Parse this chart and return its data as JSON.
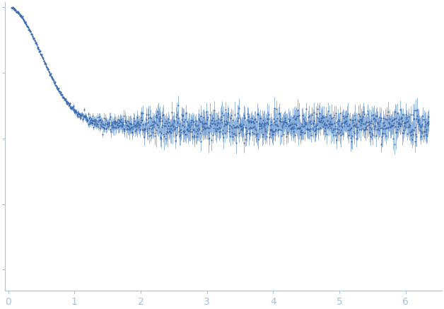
{
  "title": "",
  "xlabel": "",
  "ylabel": "",
  "xlim": [
    -0.05,
    6.55
  ],
  "x_ticks": [
    0,
    1,
    2,
    3,
    4,
    5,
    6
  ],
  "dot_color": "#3B6BAE",
  "error_color": "#7BA3D4",
  "background_color": "#ffffff",
  "spine_color": "#A8C0DC",
  "tick_color": "#A8C0DC",
  "label_color": "#A8C0DC",
  "dot_size": 2.5,
  "figsize": [
    6.28,
    4.37
  ],
  "dpi": 100,
  "n_points": 1200,
  "seed": 42
}
